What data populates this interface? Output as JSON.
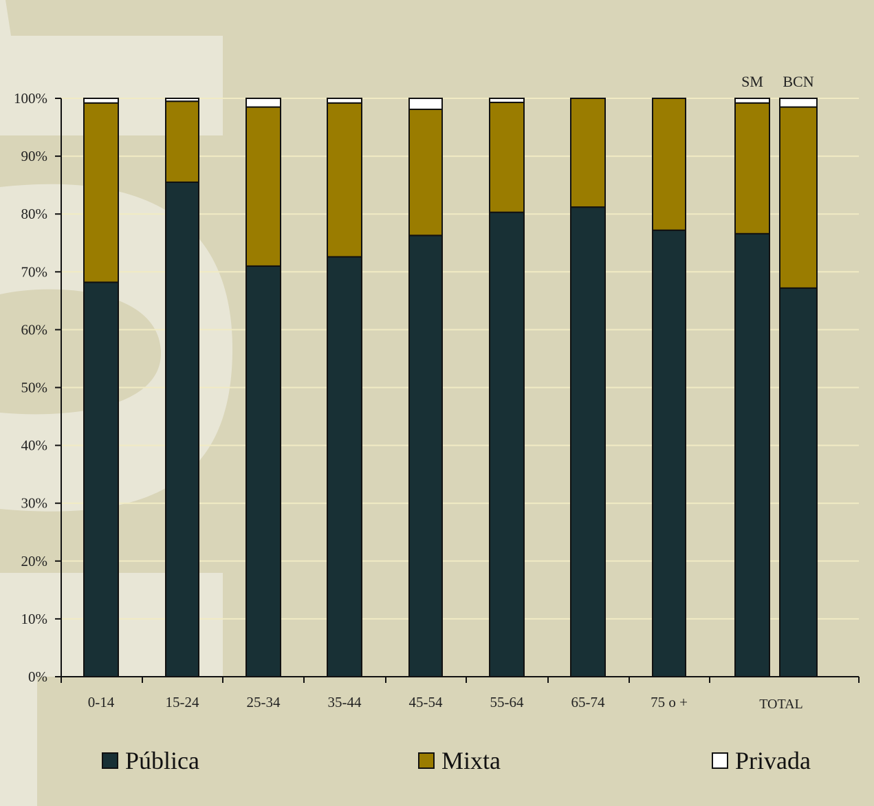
{
  "colors": {
    "background": "#d9d5b8",
    "watermark": "#e8e6d6",
    "gridline": "#f1ebc4",
    "publica": "#183035",
    "mixta": "#9a7c00",
    "privada": "#ffffff",
    "outline": "#111111"
  },
  "legend": [
    {
      "label": "Pública",
      "color": "#183035"
    },
    {
      "label": "Mixta",
      "color": "#9a7c00"
    },
    {
      "label": "Privada",
      "color": "#ffffff"
    }
  ],
  "chart_data": {
    "type": "bar",
    "stacked": true,
    "categories": [
      "0-14",
      "15-24",
      "25-34",
      "35-44",
      "45-54",
      "55-64",
      "65-74",
      "75 o +",
      "SM",
      "BCN"
    ],
    "total_group_label": "TOTAL",
    "top_labels": {
      "SM": "SM",
      "BCN": "BCN"
    },
    "series": [
      {
        "name": "Pública",
        "values": [
          68.2,
          85.5,
          71.0,
          72.6,
          76.3,
          80.3,
          81.2,
          77.2,
          76.6,
          67.2
        ]
      },
      {
        "name": "Mixta",
        "values": [
          31.0,
          14.0,
          27.5,
          26.6,
          21.8,
          19.0,
          18.8,
          22.8,
          22.6,
          31.3
        ]
      },
      {
        "name": "Privada",
        "values": [
          0.8,
          0.5,
          1.5,
          0.8,
          1.9,
          0.7,
          0.0,
          0.0,
          0.8,
          1.5
        ]
      }
    ],
    "ylim": [
      0,
      100
    ],
    "yticks": [
      "0%",
      "10%",
      "20%",
      "30%",
      "40%",
      "50%",
      "60%",
      "70%",
      "80%",
      "90%",
      "100%"
    ],
    "grid": true,
    "legend_position": "bottom"
  }
}
